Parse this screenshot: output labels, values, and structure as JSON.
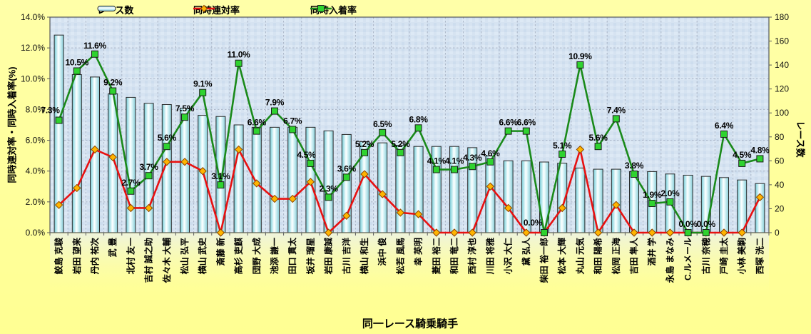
{
  "watermark": "©Caniの競馬データ研究",
  "legend": {
    "items": [
      {
        "label": "レース数"
      },
      {
        "label": "同時連対率"
      },
      {
        "label": "同時入着率"
      }
    ]
  },
  "axes": {
    "left_title": "同時連対率・同時入着率(%)",
    "right_title": "レース数",
    "x_title": "同一レース騎乗騎手",
    "left_ticks": [
      "14.0%",
      "12.0%",
      "10.0%",
      "8.0%",
      "6.0%",
      "4.0%",
      "2.0%",
      "0.0%"
    ],
    "right_ticks": [
      "180",
      "160",
      "140",
      "120",
      "100",
      "80",
      "60",
      "40",
      "20",
      "0"
    ]
  },
  "chart_data": {
    "type": "combo",
    "title": "",
    "xlabel": "同一レース騎乗騎手",
    "grid": true,
    "legend_position": "top",
    "left_axis": {
      "min": 0,
      "max": 14,
      "step": 2,
      "unit": "%"
    },
    "right_axis": {
      "min": 0,
      "max": 180,
      "step": 20
    },
    "categories": [
      "鮫島 克駿",
      "岩田 望来",
      "丹内 祐次",
      "武 豊",
      "北村 友一",
      "吉村 誠之助",
      "佐々木 大輔",
      "松山 弘平",
      "横山 武史",
      "斎藤 新",
      "高杉 吏麒",
      "団野 大成",
      "池添 謙一",
      "田口 貫太",
      "坂井 瑠星",
      "岩田 康誠",
      "古川 吉洋",
      "横山 和生",
      "浜中 俊",
      "松若 風馬",
      "幸 英明",
      "菱田 裕二",
      "和田 竜二",
      "西村 淳也",
      "川田 将雅",
      "小沢 大仁",
      "黛 弘人",
      "柴田 裕一郎",
      "松本 大輝",
      "丸山 元気",
      "和田 陽希",
      "松岡 正海",
      "吉田 隼人",
      "酒井 学",
      "永島 まなみ",
      "C.ルメール",
      "古川 奈穂",
      "戸崎 圭太",
      "小林 美駒",
      "西塚 洸二"
    ],
    "series": [
      {
        "name": "レース数",
        "type": "bar",
        "axis": "right",
        "fill": "#bfe9f0",
        "edge": "#2a2a2a",
        "values": [
          165,
          132,
          130,
          116,
          113,
          108,
          107,
          104,
          98,
          97,
          90,
          88,
          88,
          88,
          88,
          85,
          82,
          76,
          75,
          73,
          72,
          72,
          72,
          71,
          64,
          60,
          60,
          59,
          58,
          54,
          53,
          53,
          51,
          51,
          49,
          48,
          47,
          46,
          44,
          41
        ]
      },
      {
        "name": "同時連対率",
        "type": "line",
        "marker": "diamond",
        "axis": "left",
        "color": "#e81111",
        "marker_color": "#ffb400",
        "marker_edge": "#8a4500",
        "values": [
          1.8,
          2.9,
          5.4,
          4.9,
          1.6,
          1.6,
          4.6,
          4.6,
          4.0,
          0.0,
          5.4,
          3.2,
          2.2,
          2.2,
          3.3,
          0.0,
          1.1,
          3.8,
          2.5,
          1.3,
          1.2,
          0.0,
          0.0,
          0.0,
          3.0,
          1.6,
          0.0,
          0.0,
          1.6,
          5.4,
          0.0,
          1.8,
          0.0,
          0.0,
          0.0,
          0.0,
          0.0,
          0.0,
          0.0,
          2.3
        ]
      },
      {
        "name": "同時入着率",
        "type": "line",
        "marker": "square",
        "axis": "left",
        "color": "#1a8a1a",
        "marker_color": "#2fd32f",
        "marker_edge": "#1c1c1c",
        "data_labels": true,
        "values": [
          7.3,
          10.5,
          11.6,
          9.2,
          2.7,
          3.7,
          5.6,
          7.5,
          9.1,
          3.1,
          11.0,
          6.6,
          7.9,
          6.7,
          4.5,
          2.3,
          3.6,
          5.2,
          6.5,
          5.2,
          6.8,
          4.1,
          4.1,
          4.3,
          4.6,
          6.6,
          6.6,
          0.0,
          5.1,
          10.9,
          5.6,
          7.4,
          3.8,
          1.9,
          2.0,
          0.0,
          0.0,
          6.4,
          4.5,
          4.8
        ]
      }
    ],
    "colors": {
      "plot_bg": "#d6e3f1",
      "grid": "#a9b4c6",
      "frame": "#58595b",
      "page_bg": "#ffff9c",
      "watermark": "#a9b2e8"
    }
  }
}
